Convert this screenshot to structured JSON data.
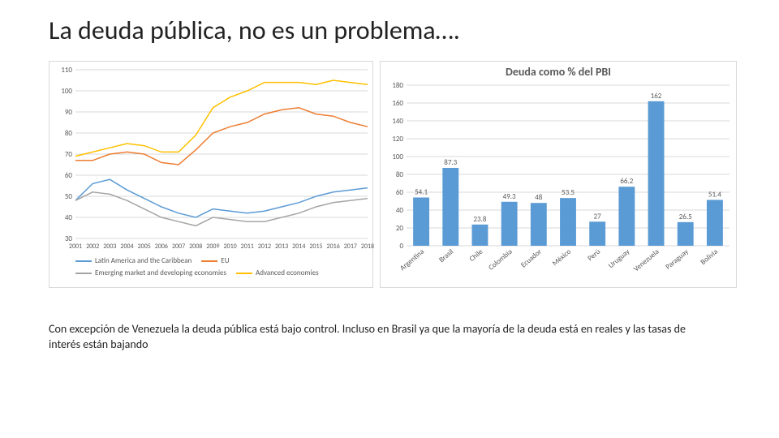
{
  "title": "La deuda pública, no es un problema….",
  "caption": "Con excepción de Venezuela la deuda pública está bajo control. Incluso en Brasil ya que la mayoría de la deuda está en reales y las tasas de interés están bajando",
  "line_chart": {
    "type": "line",
    "title_fontsize": 14,
    "label_fontsize": 9,
    "background_color": "#ffffff",
    "grid_color": "#d9d9d9",
    "ylim": [
      30,
      110
    ],
    "ytick_step": 10,
    "yticks": [
      30,
      40,
      50,
      60,
      70,
      80,
      90,
      100,
      110
    ],
    "years": [
      2001,
      2002,
      2003,
      2004,
      2005,
      2006,
      2007,
      2008,
      2009,
      2010,
      2011,
      2012,
      2013,
      2014,
      2015,
      2016,
      2017,
      2018
    ],
    "line_width": 1.5,
    "series": [
      {
        "name": "Latin America and the Caribbean",
        "color": "#5b9bd5",
        "values": [
          48,
          56,
          58,
          53,
          49,
          45,
          42,
          40,
          44,
          43,
          42,
          43,
          45,
          47,
          50,
          52,
          53,
          54
        ]
      },
      {
        "name": "EU",
        "color": "#ed7d31",
        "values": [
          67,
          67,
          70,
          71,
          70,
          66,
          65,
          72,
          80,
          83,
          85,
          89,
          91,
          92,
          89,
          88,
          85,
          83
        ]
      },
      {
        "name": "Emerging market and developing economies",
        "color": "#a5a5a5",
        "values": [
          48,
          52,
          51,
          48,
          44,
          40,
          38,
          36,
          40,
          39,
          38,
          38,
          40,
          42,
          45,
          47,
          48,
          49
        ]
      },
      {
        "name": "Advanced economies",
        "color": "#ffc000",
        "values": [
          69,
          71,
          73,
          75,
          74,
          71,
          71,
          79,
          92,
          97,
          100,
          104,
          104,
          104,
          103,
          105,
          104,
          103
        ]
      }
    ]
  },
  "bar_chart": {
    "type": "bar",
    "title": "Deuda como % del PBI",
    "title_fontsize": 14,
    "label_fontsize": 9,
    "background_color": "#ffffff",
    "bar_color": "#5b9bd5",
    "grid_color": "#d9d9d9",
    "ylim": [
      0,
      180
    ],
    "ytick_step": 20,
    "yticks": [
      0,
      20,
      40,
      60,
      80,
      100,
      120,
      140,
      160,
      180
    ],
    "bar_width": 0.55,
    "categories": [
      "Argentina",
      "Brasil",
      "Chile",
      "Colombia",
      "Ecuador",
      "México",
      "Perú",
      "Uruguay",
      "Venezuela",
      "Paraguay",
      "Bolivia"
    ],
    "values": [
      54.1,
      87.3,
      23.8,
      49.3,
      48,
      53.5,
      27,
      66.2,
      162,
      26.5,
      51.4
    ]
  }
}
